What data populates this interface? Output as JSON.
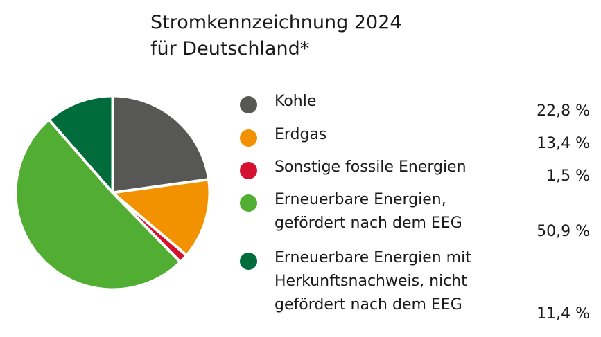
{
  "chart_data": {
    "type": "pie",
    "title_lines": [
      "Stromkennzeichnung 2024",
      "für Deutschland*"
    ],
    "slices": [
      {
        "label_lines": [
          "Kohle"
        ],
        "value": 22.8,
        "value_label": "22,8 %",
        "color": "#575756"
      },
      {
        "label_lines": [
          "Erdgas"
        ],
        "value": 13.4,
        "value_label": "13,4 %",
        "color": "#f39200"
      },
      {
        "label_lines": [
          "Sonstige fossile Energien"
        ],
        "value": 1.5,
        "value_label": "1,5 %",
        "color": "#d51130"
      },
      {
        "label_lines": [
          "Erneuerbare Energien,",
          "gefördert nach dem EEG"
        ],
        "value": 50.9,
        "value_label": "50,9 %",
        "color": "#52ae32"
      },
      {
        "label_lines": [
          "Erneuerbare Energien mit",
          "Herkunftsnachweis, nicht",
          "gefördert nach dem EEG"
        ],
        "value": 11.4,
        "value_label": "11,4 %",
        "color": "#006c3b"
      }
    ]
  }
}
